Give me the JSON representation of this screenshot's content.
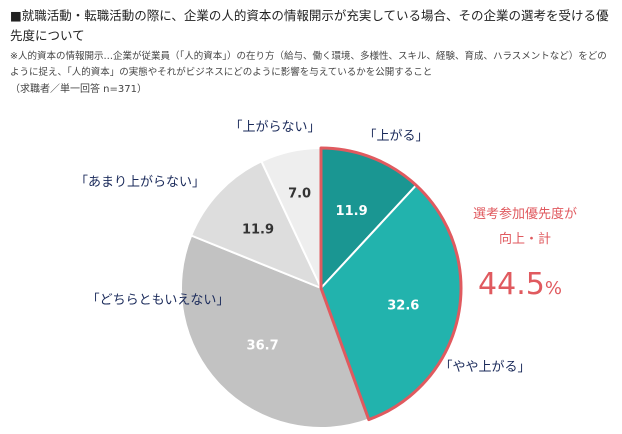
{
  "header": {
    "title": "■就職活動・転職活動の際に、企業の人的資本の情報開示が充実している場合、その企業の選考を受ける優先度について",
    "note": "※人的資本の情報開示…企業が従業員（「人的資本」）の在り方（給与、働く環境、多様性、スキル、経験、育成、ハラスメントなど）をどのように捉え、「人的資本」の実態やそれがビジネスにどのように影響を与えているかを公開すること",
    "sample": "（求職者／単一回答 n=371）"
  },
  "summary": {
    "label_line1": "選考参加優先度が",
    "label_line2": "向上・計",
    "value": "44.5",
    "unit": "%"
  },
  "chart_data": {
    "type": "pie",
    "title": "",
    "slices": [
      {
        "label": "「上がる」",
        "value": 11.9,
        "display": "11.9",
        "color": "#1a9692",
        "value_color": "#ffffff"
      },
      {
        "label": "「やや上がる」",
        "value": 32.6,
        "display": "32.6",
        "color": "#22b3ad",
        "value_color": "#ffffff"
      },
      {
        "label": "「どちらともいえない」",
        "value": 36.7,
        "display": "36.7",
        "color": "#c2c2c2",
        "value_color": "#ffffff"
      },
      {
        "label": "「あまり上がらない」",
        "value": 11.9,
        "display": "11.9",
        "color": "#dddddd",
        "value_color": "#333333"
      },
      {
        "label": "「上がらない」",
        "value": 7.0,
        "display": "7.0",
        "color": "#eeeeee",
        "value_color": "#333333"
      }
    ],
    "highlight": {
      "slices": [
        0,
        1
      ],
      "color": "#e05a5f"
    }
  }
}
